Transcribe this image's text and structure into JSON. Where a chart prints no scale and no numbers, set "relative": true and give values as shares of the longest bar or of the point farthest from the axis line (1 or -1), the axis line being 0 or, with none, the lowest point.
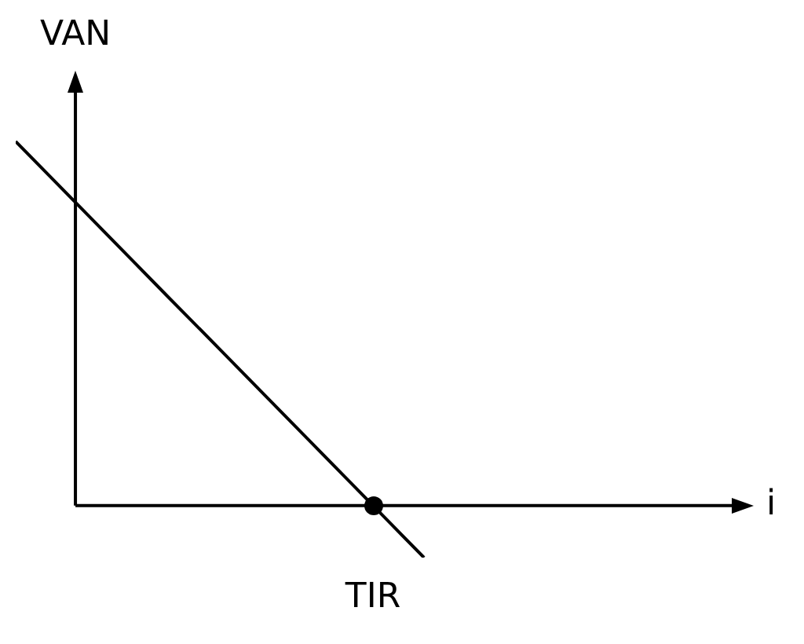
{
  "chart_data": {
    "type": "line",
    "relative": true,
    "ylabel": "VAN",
    "categories": [
      null,
      null,
      null,
      null,
      null,
      null,
      null,
      null,
      null
    ],
    "series": [
      {
        "color": "#000000",
        "values": [
          1,
          0.857,
          0.714,
          0.571,
          0.429,
          0.286,
          0.143,
          0,
          -0.143
        ]
      }
    ],
    "annotations": [
      "TIR",
      "i"
    ],
    "marker": "none",
    "line_style": "solid",
    "legend": false
  }
}
